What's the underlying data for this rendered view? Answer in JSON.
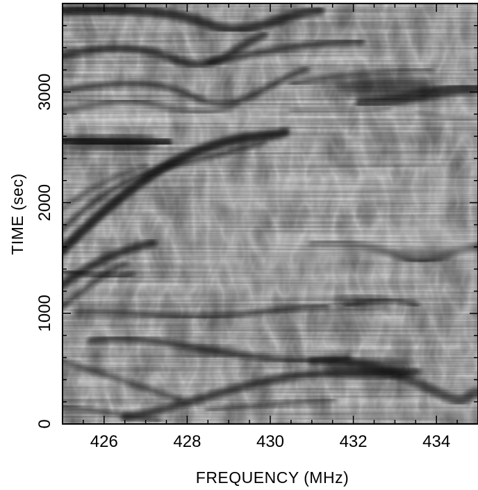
{
  "chart_data": {
    "type": "heatmap",
    "title": "",
    "xlabel": "FREQUENCY (MHz)",
    "ylabel": "TIME (sec)",
    "xlim": [
      425,
      435
    ],
    "ylim": [
      0,
      3800
    ],
    "x_ticks": [
      426,
      428,
      430,
      432,
      434
    ],
    "x_tick_labels": [
      "426",
      "428",
      "430",
      "432",
      "434"
    ],
    "y_ticks": [
      0,
      1000,
      2000,
      3000
    ],
    "y_tick_labels": [
      "0",
      "1000",
      "2000",
      "3000"
    ],
    "colormap": "grayscale (white = low, black = high)",
    "grid": false,
    "features": [
      {
        "name": "drifting scintillation band",
        "freq_mhz": [
          425.0,
          431.0
        ],
        "time_sec": [
          1700,
          2450
        ]
      },
      {
        "name": "drifting scintillation band",
        "freq_mhz": [
          425.0,
          427.8
        ],
        "time_sec": [
          1300,
          1900
        ]
      },
      {
        "name": "horizontal dark band",
        "freq_mhz": [
          425.0,
          426.7
        ],
        "time_sec": [
          2600,
          2650
        ]
      },
      {
        "name": "dark patch",
        "freq_mhz": [
          432.3,
          434.5
        ],
        "time_sec": [
          2900,
          3150
        ]
      },
      {
        "name": "dark patch",
        "freq_mhz": [
          431.8,
          434.0
        ],
        "time_sec": [
          450,
          650
        ]
      },
      {
        "name": "dark patch",
        "freq_mhz": [
          432.5,
          434.3
        ],
        "time_sec": [
          1450,
          1650
        ]
      },
      {
        "name": "dark streak",
        "freq_mhz": [
          425.0,
          429.0
        ],
        "time_sec": [
          3650,
          3800
        ]
      }
    ]
  }
}
